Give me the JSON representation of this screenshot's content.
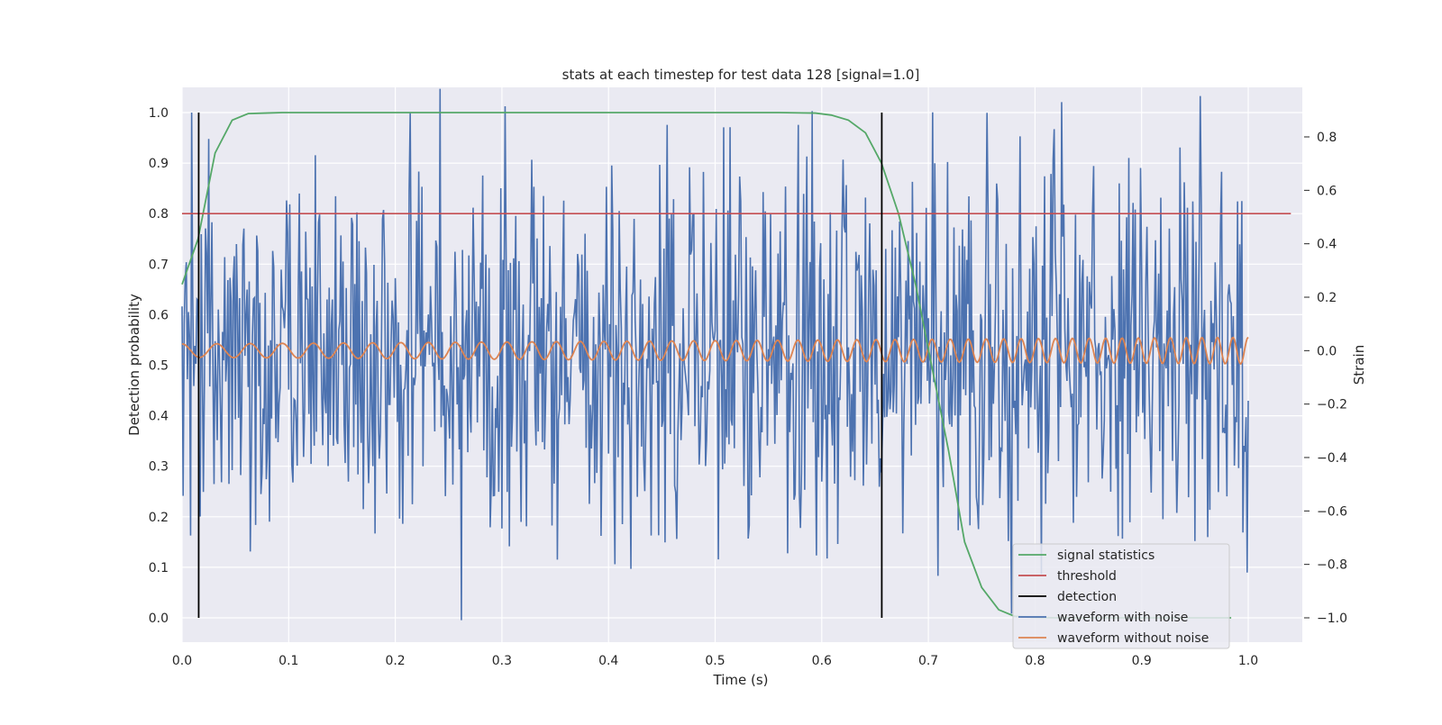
{
  "chart_data": {
    "type": "line",
    "title": "stats at each timestep for test data 128 [signal=1.0]",
    "xlabel": "Time (s)",
    "ylabel": "Detection probability",
    "y2label": "Strain",
    "xlim": [
      0.0,
      1.05
    ],
    "ylim": [
      -0.05,
      1.05
    ],
    "y2lim": [
      -1.09,
      0.98
    ],
    "x_ticks": [
      "0.0",
      "0.1",
      "0.2",
      "0.3",
      "0.4",
      "0.5",
      "0.6",
      "0.7",
      "0.8",
      "0.9",
      "1.0"
    ],
    "y_ticks": [
      "0.0",
      "0.1",
      "0.2",
      "0.3",
      "0.4",
      "0.5",
      "0.6",
      "0.7",
      "0.8",
      "0.9",
      "1.0"
    ],
    "y2_ticks": [
      "−1.0",
      "−0.8",
      "−0.6",
      "−0.4",
      "−0.2",
      "0.0",
      "0.2",
      "0.4",
      "0.6",
      "0.8"
    ],
    "grid": true,
    "legend_position": "lower right",
    "series": [
      {
        "name": "signal statistics",
        "axis": "left",
        "color": "#55a868",
        "x": [
          0.0,
          0.015,
          0.031,
          0.047,
          0.062,
          0.078,
          0.094,
          0.2,
          0.4,
          0.56,
          0.594,
          0.609,
          0.625,
          0.641,
          0.656,
          0.672,
          0.688,
          0.703,
          0.719,
          0.734,
          0.75,
          0.766,
          0.781,
          0.797,
          0.82,
          0.9,
          0.984
        ],
        "y": [
          0.66,
          0.75,
          0.92,
          0.985,
          0.998,
          0.999,
          1.0,
          1.0,
          1.0,
          1.0,
          0.999,
          0.995,
          0.985,
          0.96,
          0.9,
          0.8,
          0.66,
          0.5,
          0.33,
          0.15,
          0.06,
          0.016,
          0.003,
          0.001,
          0.0,
          0.0,
          0.0
        ]
      },
      {
        "name": "threshold",
        "axis": "left",
        "color": "#c44e52",
        "x": [
          0.0,
          1.04
        ],
        "y": [
          0.8,
          0.8
        ]
      },
      {
        "name": "detection",
        "axis": "left",
        "color": "#000000",
        "x": [
          0.0156,
          0.6563
        ],
        "y": [
          1.0,
          1.0
        ]
      },
      {
        "name": "waveform with noise",
        "axis": "right",
        "color": "#4c72b0",
        "x_range": [
          0.0,
          1.0
        ],
        "amplitude": 0.9
      },
      {
        "name": "waveform without noise",
        "axis": "right",
        "color": "#dd8452",
        "x_range": [
          0.0,
          1.0
        ],
        "amplitude_range": [
          0.025,
          0.05
        ],
        "frequency_range_hz": [
          30,
          70
        ]
      }
    ]
  }
}
